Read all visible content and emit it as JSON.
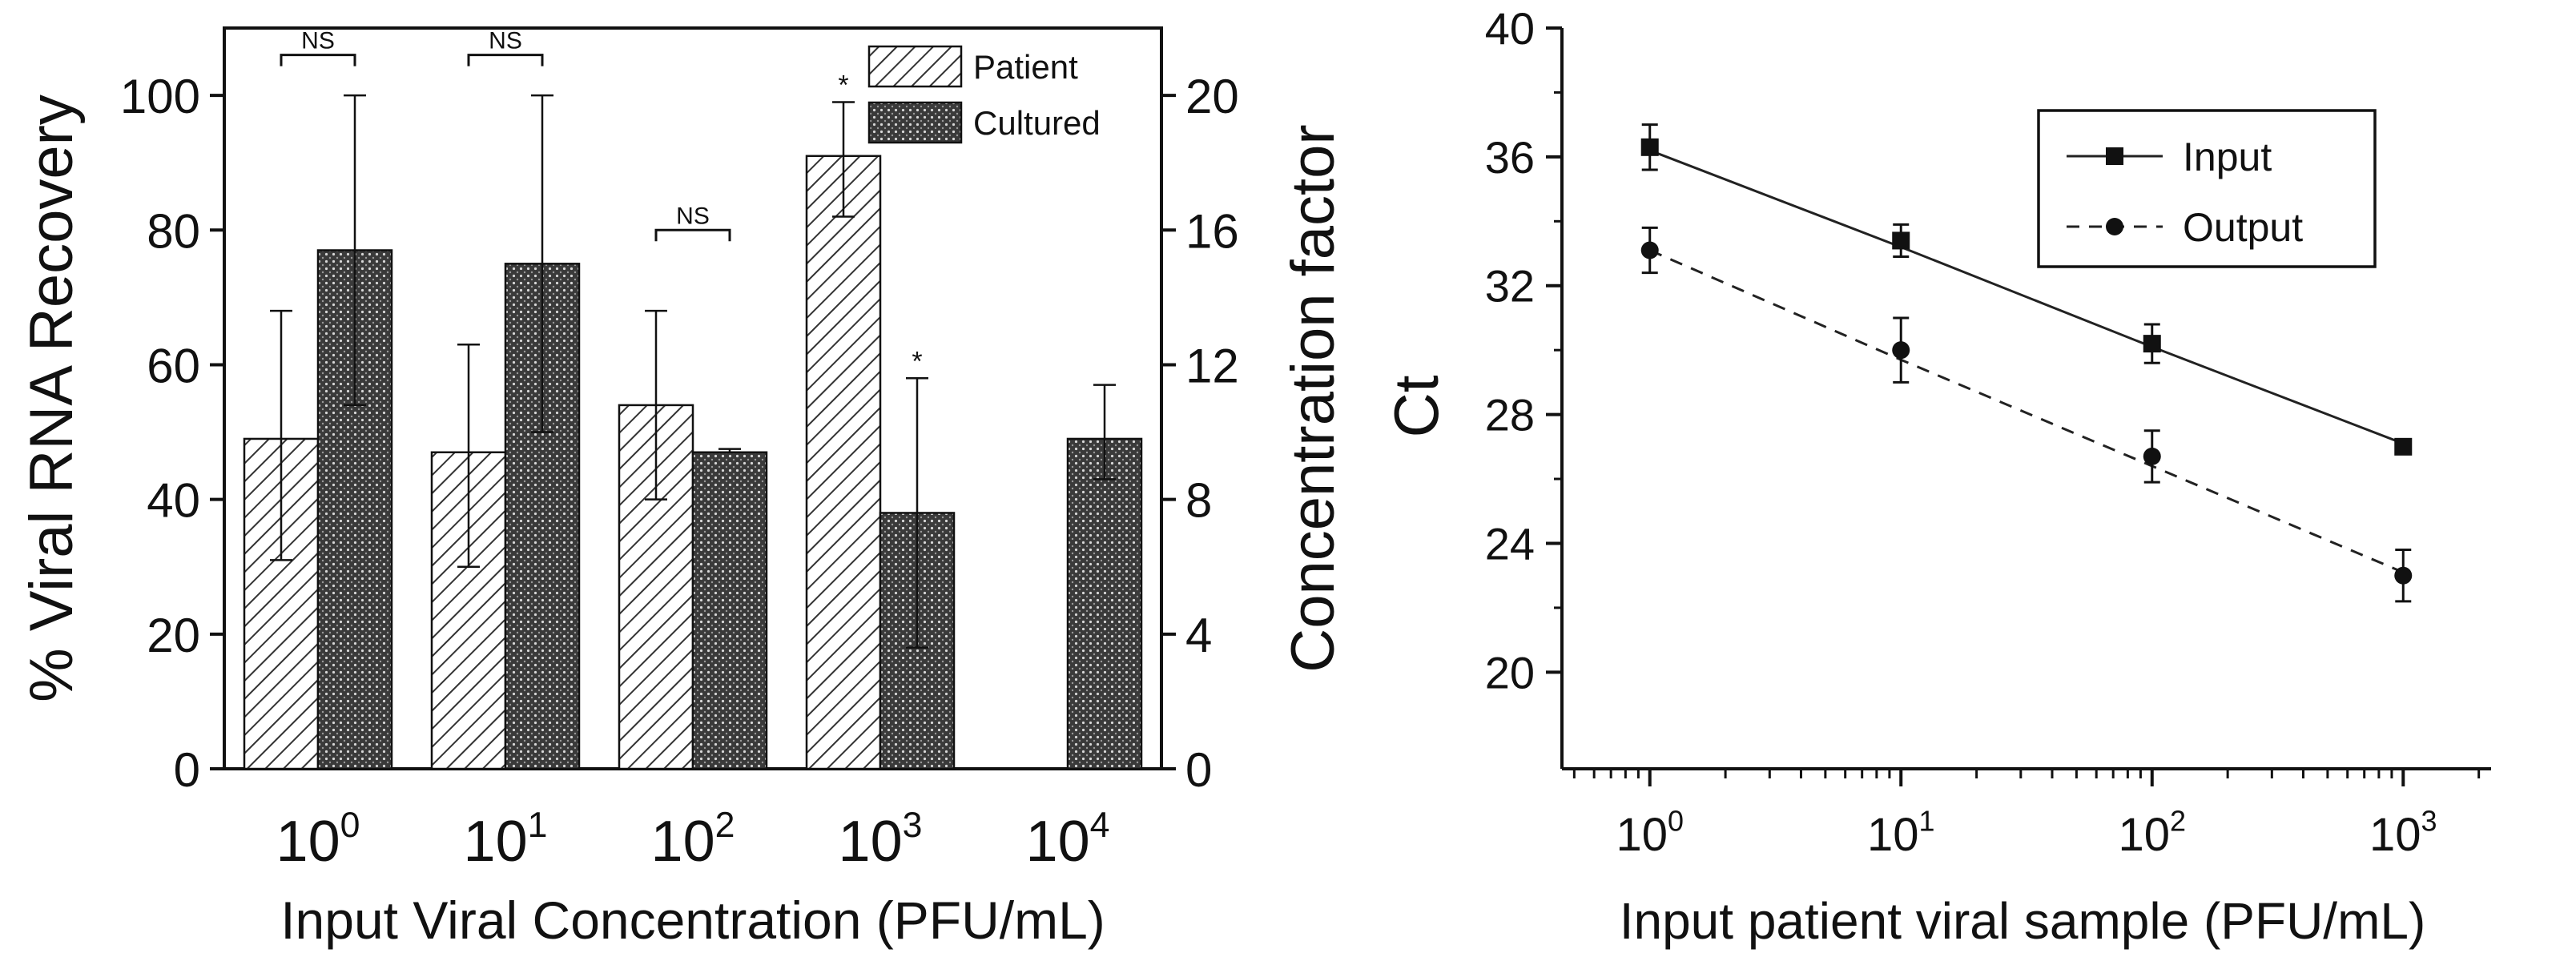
{
  "chart_data": [
    {
      "type": "bar",
      "panel": "left",
      "xlabel": "Input Viral Concentration (PFU/mL)",
      "ylabel": "% Viral RNA Recovery",
      "y2label": "Concentration factor",
      "ylim": [
        0,
        110
      ],
      "y2lim": [
        0,
        22
      ],
      "yticks": [
        "0",
        "20",
        "40",
        "60",
        "80",
        "100"
      ],
      "y2ticks": [
        "0",
        "4",
        "8",
        "12",
        "16",
        "20"
      ],
      "categories": [
        {
          "base": "10",
          "exp": "0"
        },
        {
          "base": "10",
          "exp": "1"
        },
        {
          "base": "10",
          "exp": "2"
        },
        {
          "base": "10",
          "exp": "3"
        },
        {
          "base": "10",
          "exp": "4"
        }
      ],
      "legend_position": "top-right",
      "series": [
        {
          "name": "Patient",
          "pattern": "hatch",
          "values": [
            49,
            47,
            54,
            91,
            null
          ],
          "err_low": [
            31,
            30,
            40,
            82,
            null
          ],
          "err_high": [
            68,
            63,
            68,
            99,
            null
          ]
        },
        {
          "name": "Cultured",
          "pattern": "dots",
          "values": [
            77,
            75,
            47,
            38,
            49
          ],
          "err_low": [
            54,
            50,
            47,
            18,
            43
          ],
          "err_high": [
            100,
            100,
            47.5,
            58,
            57
          ]
        }
      ],
      "annotations": [
        {
          "text": "NS",
          "category": 0,
          "type": "bracket"
        },
        {
          "text": "NS",
          "category": 1,
          "type": "bracket"
        },
        {
          "text": "NS",
          "category": 2,
          "type": "bracket"
        },
        {
          "text": "*",
          "category": 3,
          "series": 0,
          "type": "star"
        },
        {
          "text": "*",
          "category": 3,
          "series": 1,
          "type": "star"
        }
      ]
    },
    {
      "type": "line",
      "panel": "right",
      "xscale": "log",
      "xlabel": "Input patient viral sample (PFU/mL)",
      "ylabel": "Ct",
      "ylim": [
        17,
        40
      ],
      "yticks": [
        20,
        24,
        28,
        32,
        36,
        40
      ],
      "xlim_exp": [
        -0.35,
        3.35
      ],
      "xticks": [
        {
          "base": "10",
          "exp": "0",
          "value": 0
        },
        {
          "base": "10",
          "exp": "1",
          "value": 1
        },
        {
          "base": "10",
          "exp": "2",
          "value": 2
        },
        {
          "base": "10",
          "exp": "3",
          "value": 3
        }
      ],
      "legend_position": "top-right",
      "series": [
        {
          "name": "Input",
          "style": "solid",
          "marker": "square",
          "x_exp": [
            0,
            1,
            2,
            3
          ],
          "y": [
            36.3,
            33.4,
            30.2,
            27.0
          ],
          "err": [
            0.7,
            0.5,
            0.6,
            0.1
          ],
          "fit": [
            36.2,
            33.2,
            30.1,
            27.1
          ]
        },
        {
          "name": "Output",
          "style": "dashed",
          "marker": "circle",
          "x_exp": [
            0,
            1,
            2,
            3
          ],
          "y": [
            33.1,
            30.0,
            26.7,
            23.0
          ],
          "err": [
            0.7,
            1.0,
            0.8,
            0.8
          ],
          "fit": [
            33.1,
            29.7,
            26.4,
            23.1
          ]
        }
      ]
    }
  ]
}
